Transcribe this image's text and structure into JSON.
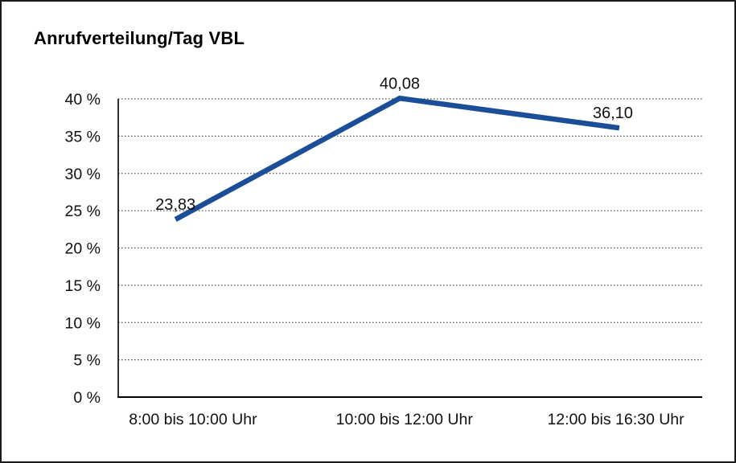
{
  "chart_data": {
    "type": "line",
    "title": "Anrufverteilung/Tag VBL",
    "categories": [
      "8:00 bis 10:00 Uhr",
      "10:00 bis 12:00 Uhr",
      "12:00 bis 16:30 Uhr"
    ],
    "series": [
      {
        "values": [
          23.83,
          40.08,
          36.1
        ],
        "point_labels": [
          "23,83",
          "40,08",
          "36,10"
        ],
        "color": "#1c4e97"
      }
    ],
    "xlabel": "",
    "ylabel": "",
    "ylim": [
      0,
      40
    ],
    "y_ticks": [
      0,
      5,
      10,
      15,
      20,
      25,
      30,
      35,
      40
    ],
    "y_tick_labels": [
      "0 %",
      "5 %",
      "10 %",
      "15 %",
      "20 %",
      "25 %",
      "30 %",
      "35 %",
      "40 %"
    ],
    "grid": "horizontal-dotted",
    "legend": "none",
    "axis_color": "#000000",
    "grid_color": "#4d4d4d",
    "text_color": "#111111"
  }
}
